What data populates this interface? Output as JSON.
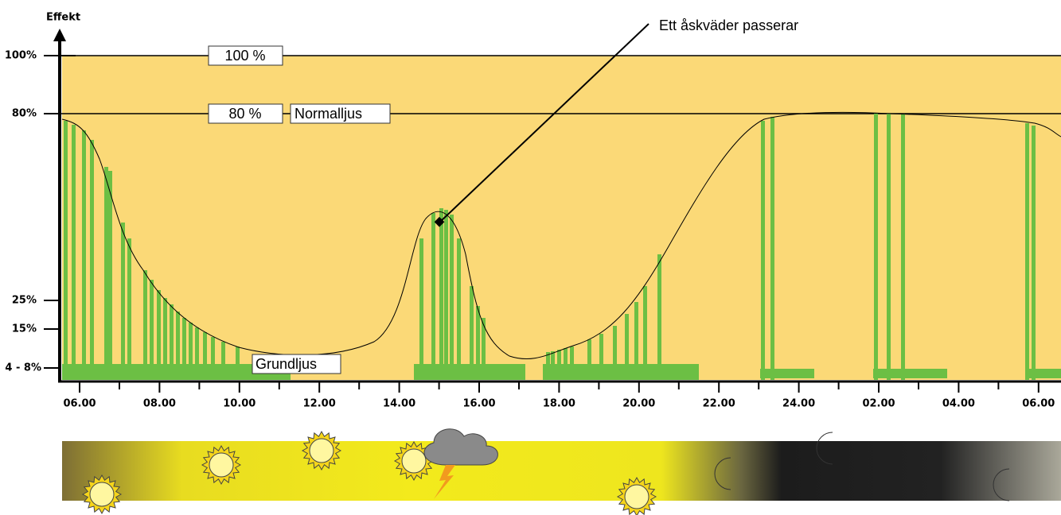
{
  "y_axis": {
    "title": "Effekt",
    "labels": [
      "100%",
      "80%",
      "25%",
      "15%",
      "4 - 8%"
    ]
  },
  "x_axis": {
    "labels": [
      "06.00",
      "08.00",
      "10.00",
      "12.00",
      "14.00",
      "16.00",
      "18.00",
      "20.00",
      "22.00",
      "24.00",
      "02.00",
      "04.00",
      "06.00"
    ]
  },
  "annotations": {
    "level_100": "100 %",
    "level_80": "80 %",
    "normal": "Normalljus",
    "base": "Grundljus",
    "storm": "Ett åskväder passerar"
  }
}
